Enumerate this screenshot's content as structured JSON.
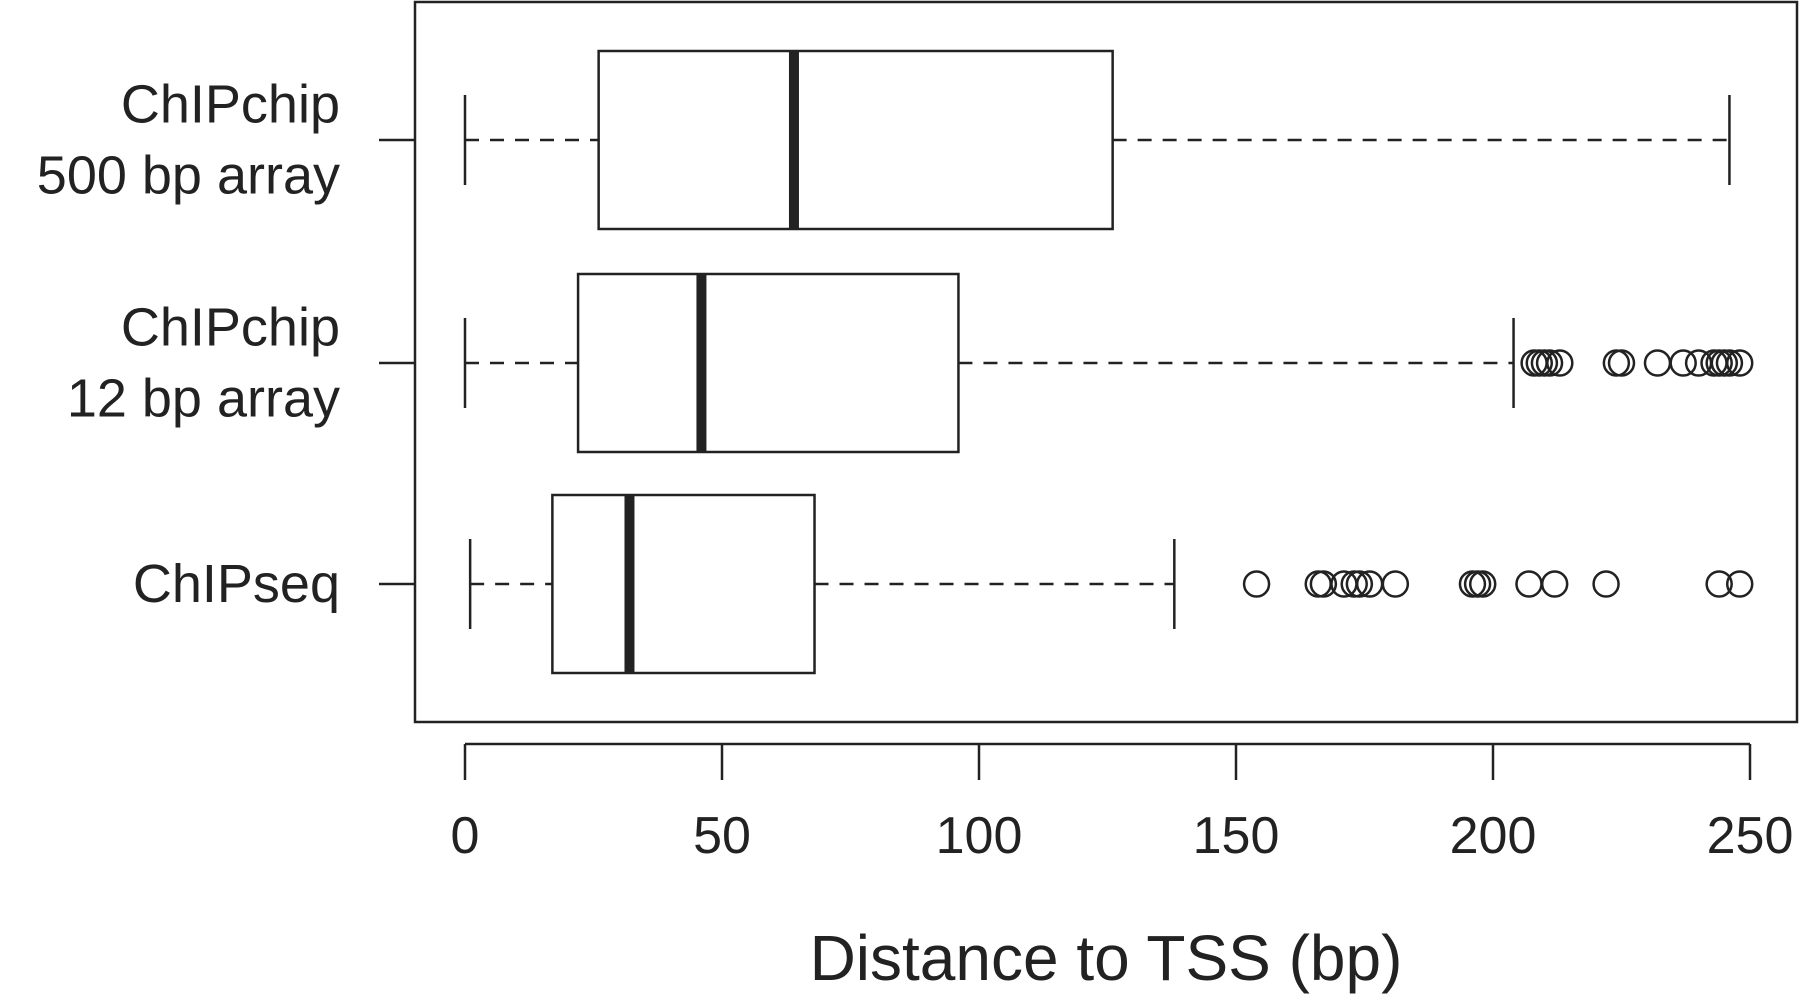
{
  "chart_data": {
    "type": "boxplot",
    "orientation": "horizontal",
    "xlabel": "Distance to TSS (bp)",
    "ylabel": "",
    "xlim": [
      -10,
      260
    ],
    "xticks": [
      0,
      50,
      100,
      150,
      200,
      250
    ],
    "grid": false,
    "legend": "none",
    "series": [
      {
        "label_lines": [
          "ChIPchip",
          "500 bp array"
        ],
        "whisker_low": 0,
        "q1": 26,
        "median": 64,
        "q3": 126,
        "whisker_high": 246,
        "outliers": []
      },
      {
        "label_lines": [
          "ChIPchip",
          "12 bp array"
        ],
        "whisker_low": 0,
        "q1": 22,
        "median": 46,
        "q3": 96,
        "whisker_high": 204,
        "outliers": [
          208,
          209,
          210,
          211,
          213,
          224,
          225,
          232,
          237,
          240,
          243,
          244,
          245,
          246,
          248
        ]
      },
      {
        "label_lines": [
          "ChIPseq"
        ],
        "whisker_low": 1,
        "q1": 17,
        "median": 32,
        "q3": 68,
        "whisker_high": 138,
        "outliers": [
          154,
          166,
          167,
          171,
          173,
          174,
          176,
          181,
          196,
          197,
          198,
          207,
          212,
          222,
          244,
          248
        ]
      }
    ]
  }
}
